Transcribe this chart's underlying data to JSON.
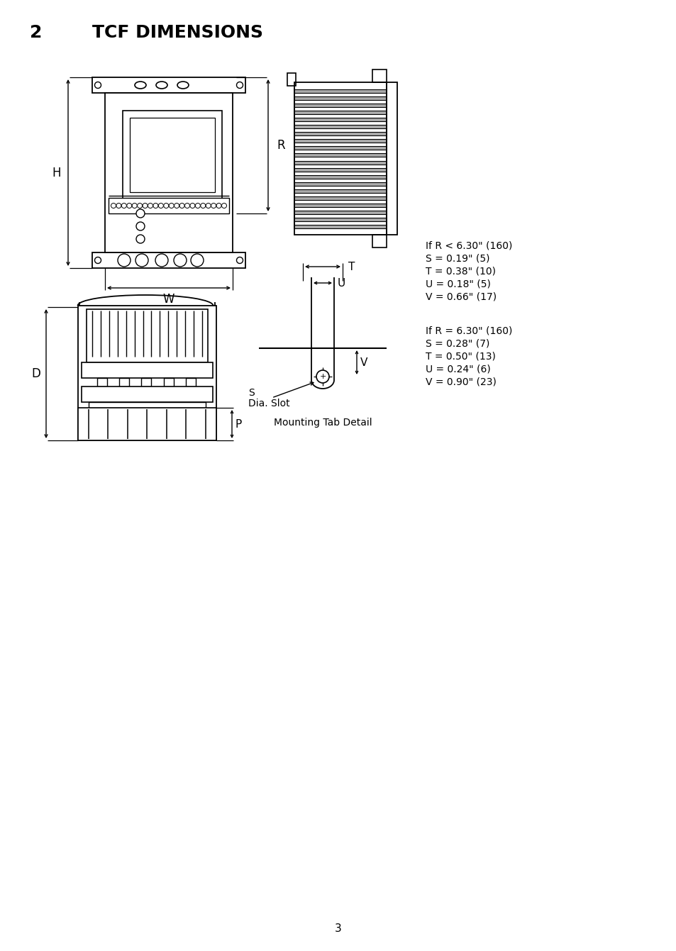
{
  "title_number": "2",
  "title_text": "TCF DIMENSIONS",
  "page_number": "3",
  "background_color": "#ffffff",
  "line_color": "#000000",
  "text_color": "#000000",
  "ann1": [
    "If R < 6.30\" (160)",
    "S = 0.19\" (5)",
    "T = 0.38\" (10)",
    "U = 0.18\" (5)",
    "V = 0.66\" (17)"
  ],
  "ann2": [
    "If R = 6.30\" (160)",
    "S = 0.28\" (7)",
    "T = 0.50\" (13)",
    "U = 0.24\" (6)",
    "V = 0.90\" (23)"
  ],
  "mounting_tab_label": "Mounting Tab Detail",
  "dia_slot_label_1": "S",
  "dia_slot_label_2": "Dia. Slot"
}
